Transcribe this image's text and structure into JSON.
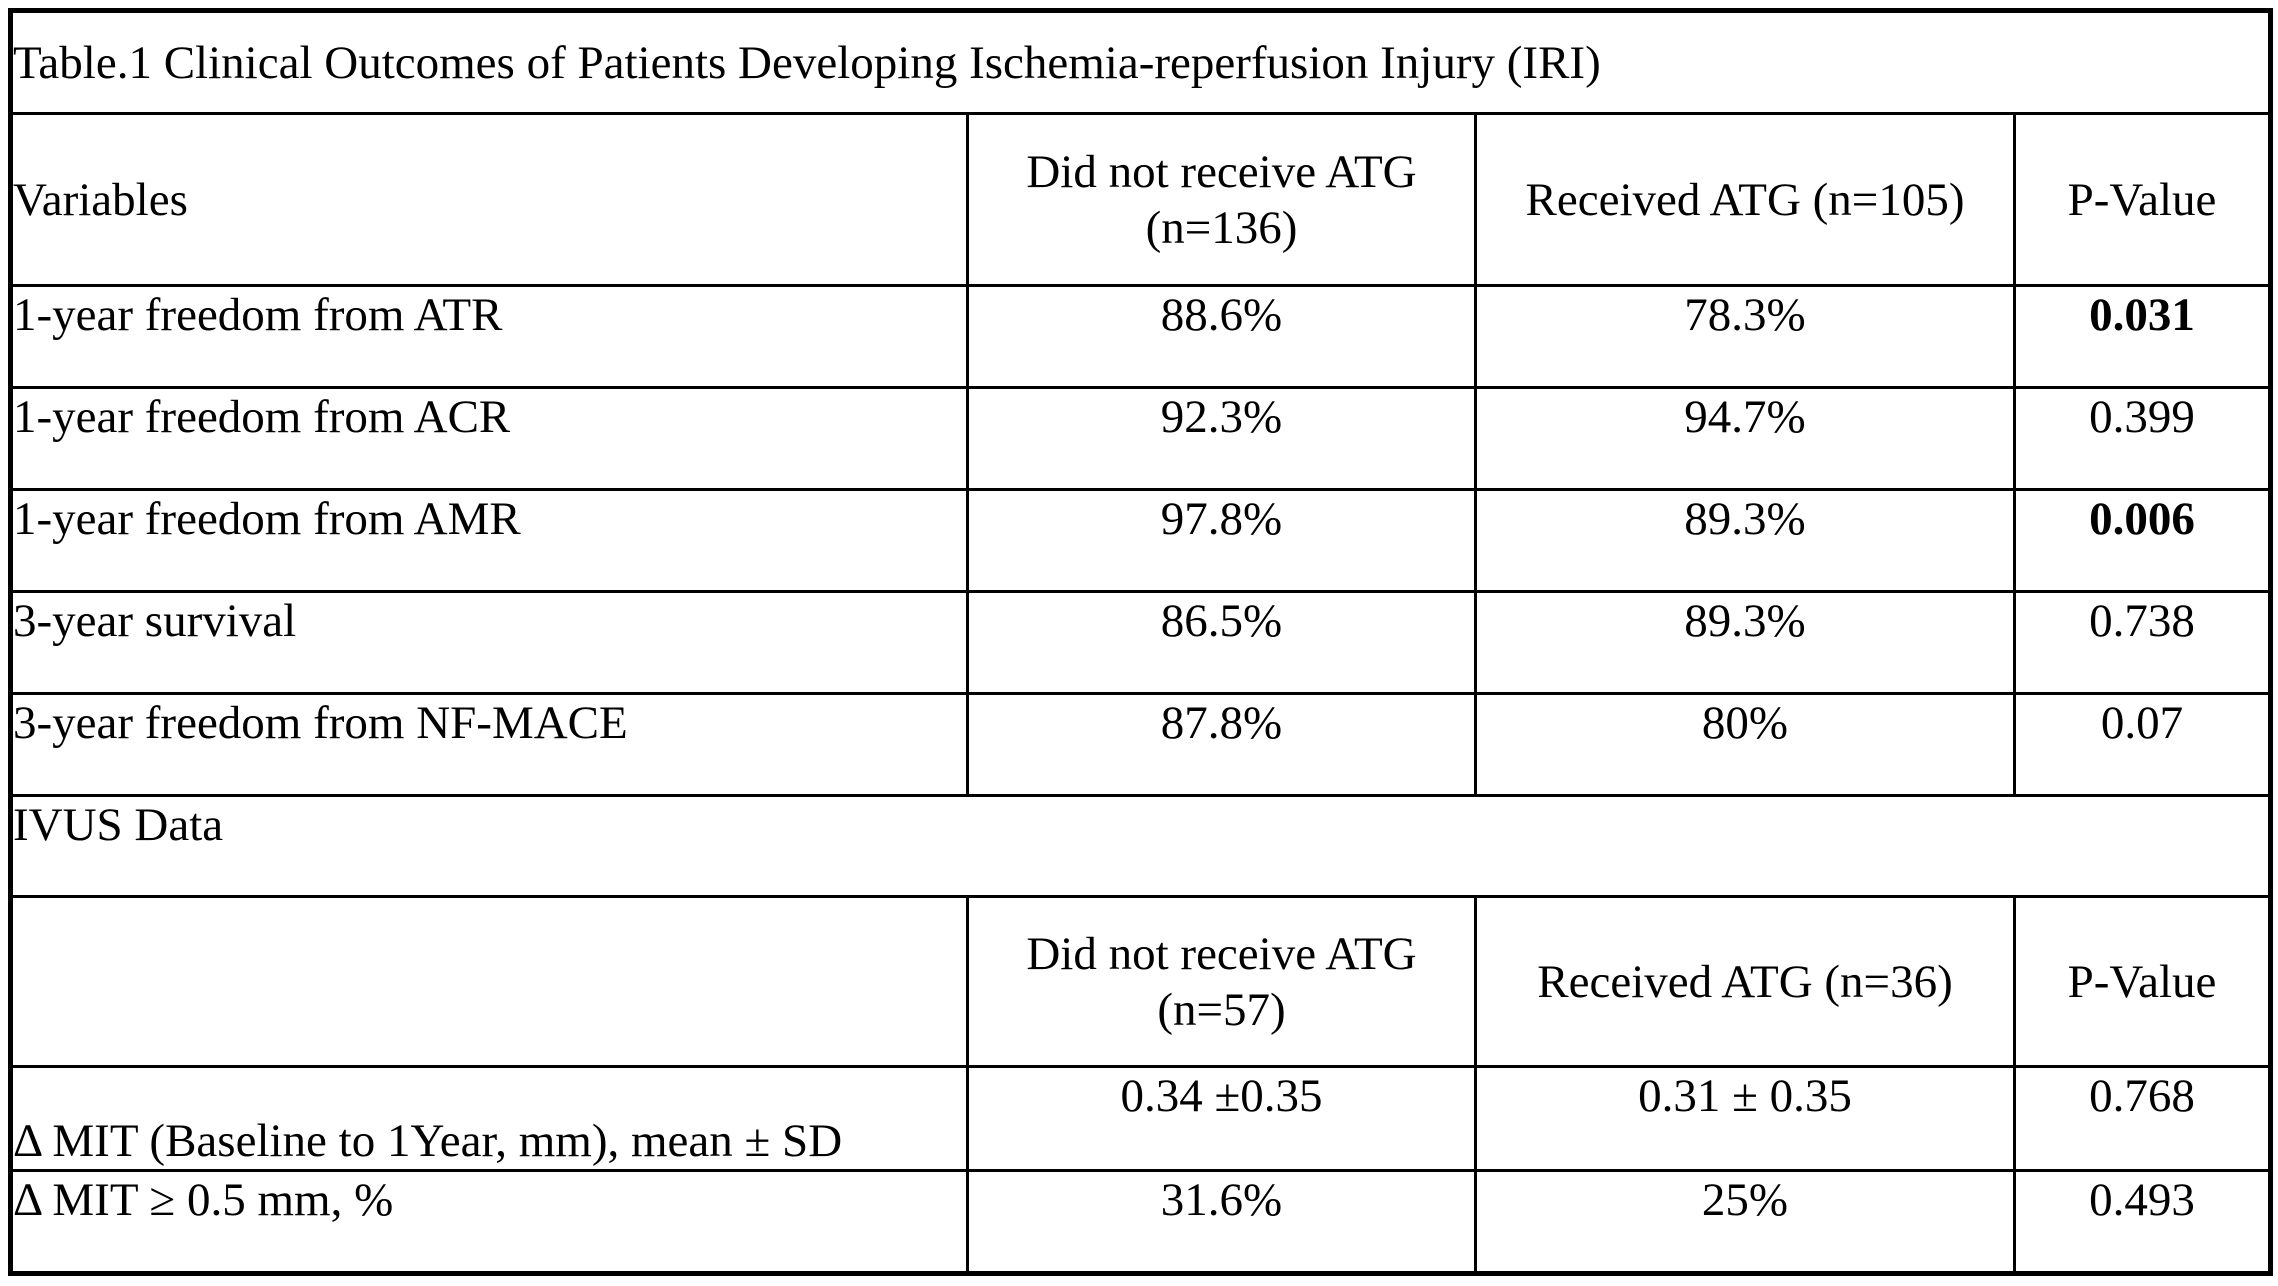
{
  "table": {
    "title": "Table.1 Clinical Outcomes of Patients Developing Ischemia-reperfusion Injury (IRI)",
    "section1": {
      "header": {
        "variables": "Variables",
        "no_atg": "Did not receive ATG (n=136)",
        "atg": "Received ATG (n=105)",
        "p": "P-Value"
      },
      "rows": [
        {
          "label": "1-year freedom from ATR",
          "no_atg": "88.6%",
          "atg": "78.3%",
          "p": "0.031",
          "p_bold": true
        },
        {
          "label": "1-year freedom from ACR",
          "no_atg": "92.3%",
          "atg": "94.7%",
          "p": "0.399",
          "p_bold": false
        },
        {
          "label": "1-year freedom from AMR",
          "no_atg": "97.8%",
          "atg": "89.3%",
          "p": "0.006",
          "p_bold": true
        },
        {
          "label": "3-year survival",
          "no_atg": "86.5%",
          "atg": "89.3%",
          "p": "0.738",
          "p_bold": false
        },
        {
          "label": "3-year freedom from NF-MACE",
          "no_atg": "87.8%",
          "atg": "80%",
          "p": "0.07",
          "p_bold": false
        }
      ]
    },
    "section2": {
      "section_label": "IVUS Data",
      "header": {
        "no_atg": "Did not receive ATG (n=57)",
        "atg": "Received ATG (n=36)",
        "p": "P-Value"
      },
      "rows": [
        {
          "label": "Δ MIT (Baseline to 1Year, mm), mean ± SD",
          "no_atg": "0.34 ±0.35",
          "atg": "0.31 ± 0.35",
          "p": "0.768",
          "p_bold": false
        },
        {
          "label": "Δ MIT ≥ 0.5 mm, %",
          "no_atg": "31.6%",
          "atg": "25%",
          "p": "0.493",
          "p_bold": false
        }
      ]
    }
  }
}
